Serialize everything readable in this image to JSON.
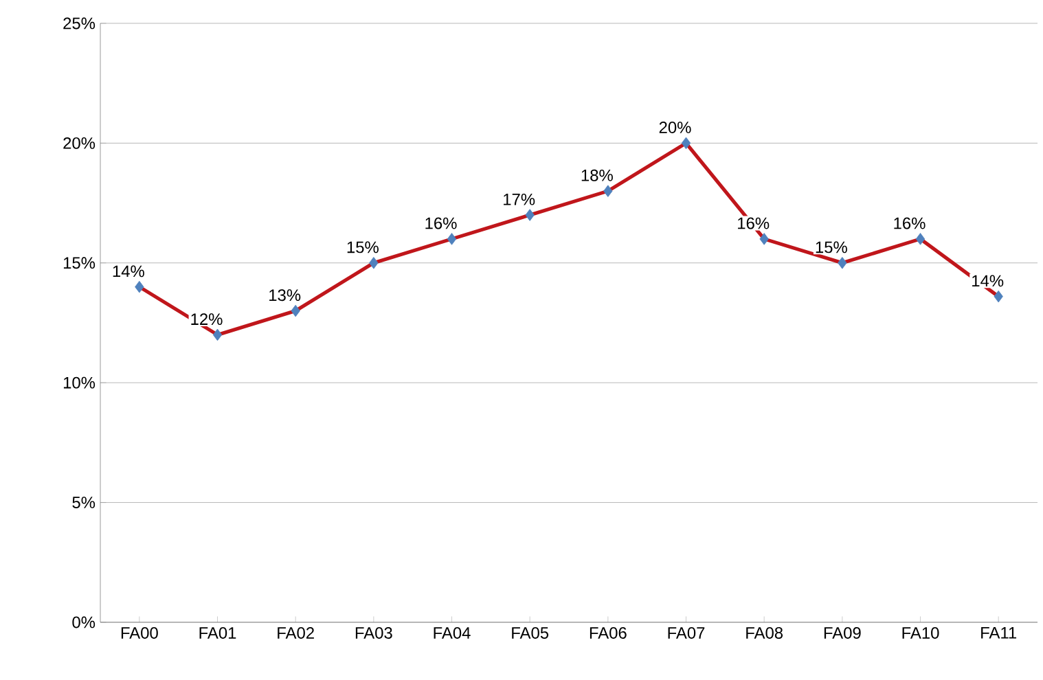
{
  "chart_data": {
    "type": "line",
    "categories": [
      "FA00",
      "FA01",
      "FA02",
      "FA03",
      "FA04",
      "FA05",
      "FA06",
      "FA07",
      "FA08",
      "FA09",
      "FA10",
      "FA11"
    ],
    "series": [
      {
        "color": "#c0161b",
        "colors": [
          "#4f81bd",
          "#4f81bd",
          "#4f81bd",
          "#4f81bd",
          "#4f81bd",
          "#4f81bd",
          "#4f81bd",
          "#4f81bd",
          "#4f81bd",
          "#4f81bd",
          "#4f81bd",
          "#4f81bd"
        ],
        "values": [
          14,
          12,
          13,
          15,
          16,
          17,
          18,
          20,
          16,
          15,
          16,
          13.6
        ],
        "value_labels": [
          "14%",
          "12%",
          "13%",
          "15%",
          "16%",
          "17%",
          "18%",
          "20%",
          "16%",
          "15%",
          "16%",
          "14%"
        ]
      }
    ],
    "ylim": [
      0,
      25
    ],
    "yticks": [
      {
        "value": 0,
        "label": "0%"
      },
      {
        "value": 5,
        "label": "5%"
      },
      {
        "value": 10,
        "label": "10%"
      },
      {
        "value": 15,
        "label": "15%"
      },
      {
        "value": 20,
        "label": "20%"
      },
      {
        "value": 25,
        "label": "25%"
      }
    ],
    "grid": "y",
    "marker": "diamond",
    "line_style": "solid"
  }
}
